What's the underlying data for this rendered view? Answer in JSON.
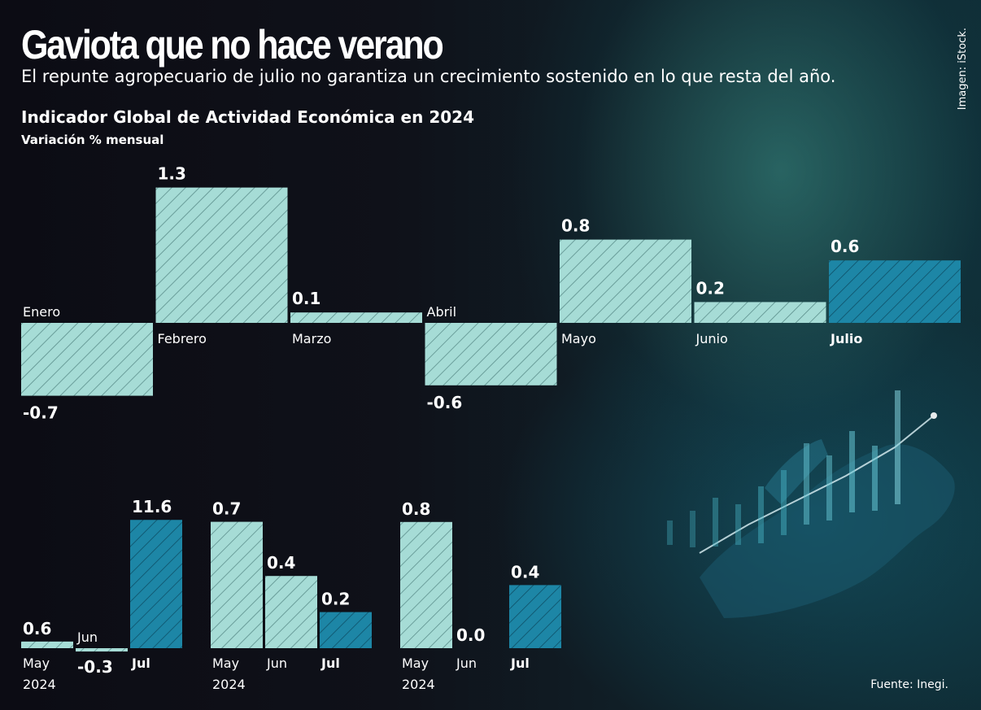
{
  "header": {
    "title": "Gaviota que no hace verano",
    "subtitle": "El repunte agropecuario de julio no garantiza un crecimiento sostenido en lo que resta del año.",
    "chart_title": "Indicador Global de Actividad Económica en 2024",
    "chart_subtitle": "Variación % mensual"
  },
  "credit": "Imagen: iStock.",
  "source": "Fuente: Inegi.",
  "colors": {
    "light": "#a6dcd6",
    "dark": "#1d86a6",
    "text": "#ffffff"
  },
  "chart_data": [
    {
      "type": "bar",
      "title": "Indicador Global de Actividad Económica en 2024",
      "ylabel": "Variación % mensual",
      "categories": [
        "Enero",
        "Febrero",
        "Marzo",
        "Abril",
        "Mayo",
        "Junio",
        "Julio"
      ],
      "values": [
        -0.7,
        1.3,
        0.1,
        -0.6,
        0.8,
        0.2,
        0.6
      ],
      "value_labels": [
        "-0.7",
        "1.3",
        "0.1",
        "-0.6",
        "0.8",
        "0.2",
        "0.6"
      ],
      "highlight": [
        false,
        false,
        false,
        false,
        false,
        false,
        true
      ]
    },
    {
      "type": "bar",
      "categories": [
        "May 2024",
        "Jun",
        "Jul"
      ],
      "values": [
        0.6,
        -0.3,
        11.6
      ],
      "value_labels": [
        "0.6",
        "-0.3",
        "11.6"
      ],
      "highlight": [
        false,
        false,
        true
      ]
    },
    {
      "type": "bar",
      "categories": [
        "May 2024",
        "Jun",
        "Jul"
      ],
      "values": [
        0.7,
        0.4,
        0.2
      ],
      "value_labels": [
        "0.7",
        "0.4",
        "0.2"
      ],
      "highlight": [
        false,
        false,
        true
      ]
    },
    {
      "type": "bar",
      "categories": [
        "May 2024",
        "Jun",
        "Jul"
      ],
      "values": [
        0.8,
        0.0,
        0.4
      ],
      "value_labels": [
        "0.8",
        "0.0",
        "0.4"
      ],
      "highlight": [
        false,
        false,
        true
      ]
    }
  ]
}
